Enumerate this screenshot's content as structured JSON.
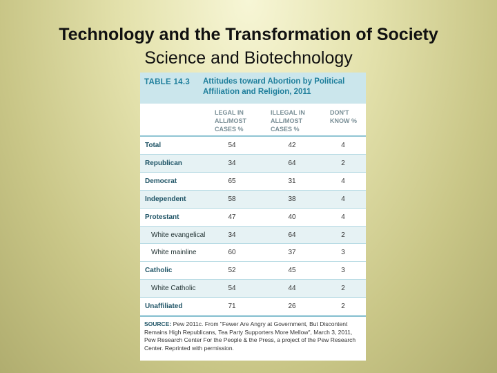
{
  "slide": {
    "title": "Technology and the Transformation of Society",
    "subtitle": "Science and Biotechnology"
  },
  "table": {
    "label": "TABLE 14.3",
    "title": "Attitudes toward Abortion by Political Affiliation and Religion, 2011",
    "columns": [
      "LEGAL IN\nALL/MOST\nCASES %",
      "ILLEGAL IN\nALL/MOST\nCASES %",
      "DON'T\nKNOW %"
    ],
    "rows": [
      {
        "label": "Total",
        "legal": "54",
        "illegal": "42",
        "dont_know": "4"
      },
      {
        "label": "Republican",
        "legal": "34",
        "illegal": "64",
        "dont_know": "2"
      },
      {
        "label": "Democrat",
        "legal": "65",
        "illegal": "31",
        "dont_know": "4"
      },
      {
        "label": "Independent",
        "legal": "58",
        "illegal": "38",
        "dont_know": "4"
      },
      {
        "label": "Protestant",
        "legal": "47",
        "illegal": "40",
        "dont_know": "4"
      },
      {
        "label": "White evangelical",
        "legal": "34",
        "illegal": "64",
        "dont_know": "2"
      },
      {
        "label": "White mainline",
        "legal": "60",
        "illegal": "37",
        "dont_know": "3"
      },
      {
        "label": "Catholic",
        "legal": "52",
        "illegal": "45",
        "dont_know": "3"
      },
      {
        "label": "White Catholic",
        "legal": "54",
        "illegal": "44",
        "dont_know": "2"
      },
      {
        "label": "Unaffiliated",
        "legal": "71",
        "illegal": "26",
        "dont_know": "2"
      }
    ],
    "source_label": "SOURCE:",
    "source_text": "Pew 2011c. From \"Fewer Are Angry at Government, But Discontent Remains High Republicans, Tea Party Supporters More Mellow\", March 3, 2011, Pew Research Center For the People & the Press, a project of the Pew Research Center. Reprinted with permission."
  },
  "colors": {
    "accent": "#1f7f9c",
    "header_band": "#cbe6ec",
    "row_shade": "#e6f2f4"
  }
}
